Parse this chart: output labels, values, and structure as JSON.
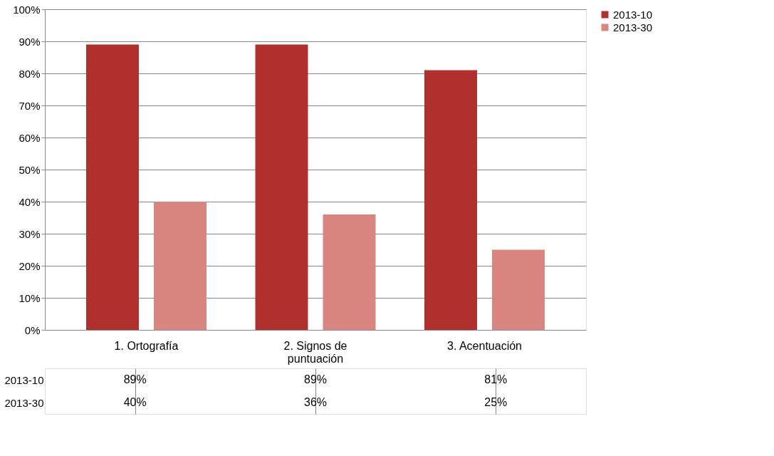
{
  "chart_data": {
    "type": "bar",
    "categories": [
      "1. Ortografía",
      "2.  Signos de puntuación",
      "3. Acentuación"
    ],
    "series": [
      {
        "name": "2013-10",
        "color": "#b0302e",
        "values": [
          89,
          89,
          81
        ],
        "value_labels": [
          "89%",
          "89%",
          "81%"
        ]
      },
      {
        "name": "2013-30",
        "color": "#d98580",
        "values": [
          40,
          36,
          25
        ],
        "value_labels": [
          "40%",
          "36%",
          "25%"
        ]
      }
    ],
    "ylim": [
      0,
      100
    ],
    "yticks": [
      {
        "value": 0,
        "label": "0%"
      },
      {
        "value": 10,
        "label": "10%"
      },
      {
        "value": 20,
        "label": "20%"
      },
      {
        "value": 30,
        "label": "30%"
      },
      {
        "value": 40,
        "label": "40%"
      },
      {
        "value": 50,
        "label": "50%"
      },
      {
        "value": 60,
        "label": "60%"
      },
      {
        "value": 70,
        "label": "70%"
      },
      {
        "value": 80,
        "label": "80%"
      },
      {
        "value": 90,
        "label": "90%"
      },
      {
        "value": 100,
        "label": "100%"
      }
    ],
    "grid": "y",
    "legend": "right"
  }
}
